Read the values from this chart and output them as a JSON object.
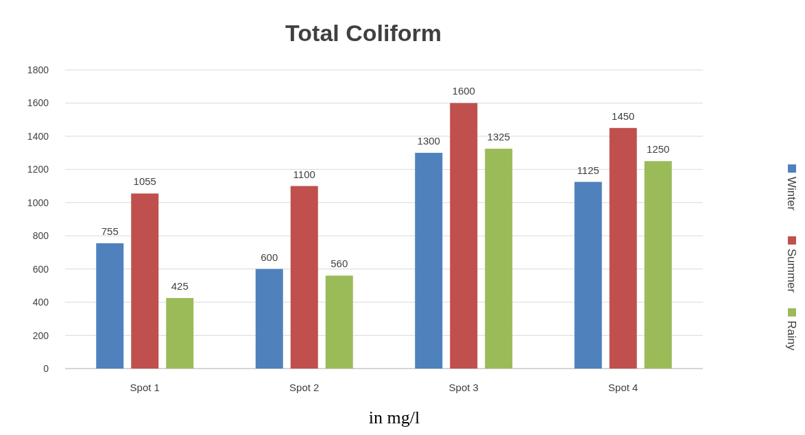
{
  "chart_data": {
    "type": "bar",
    "title": "Total Coliform",
    "xlabel": "in mg/l",
    "categories": [
      "Spot 1",
      "Spot 2",
      "Spot 3",
      "Spot 4"
    ],
    "series": [
      {
        "name": "Winter",
        "color": "#4f81bd",
        "values": [
          755,
          600,
          1300,
          1125
        ]
      },
      {
        "name": "Summer",
        "color": "#c0504d",
        "values": [
          1055,
          1100,
          1600,
          1450
        ]
      },
      {
        "name": "Rainy",
        "color": "#9bbb59",
        "values": [
          425,
          560,
          1325,
          1250
        ]
      }
    ],
    "ylim": [
      0,
      1800
    ],
    "yticks": [
      0,
      200,
      400,
      600,
      800,
      1000,
      1200,
      1400,
      1600,
      1800
    ],
    "grid": "y",
    "legend": "right",
    "data_labels": true
  }
}
